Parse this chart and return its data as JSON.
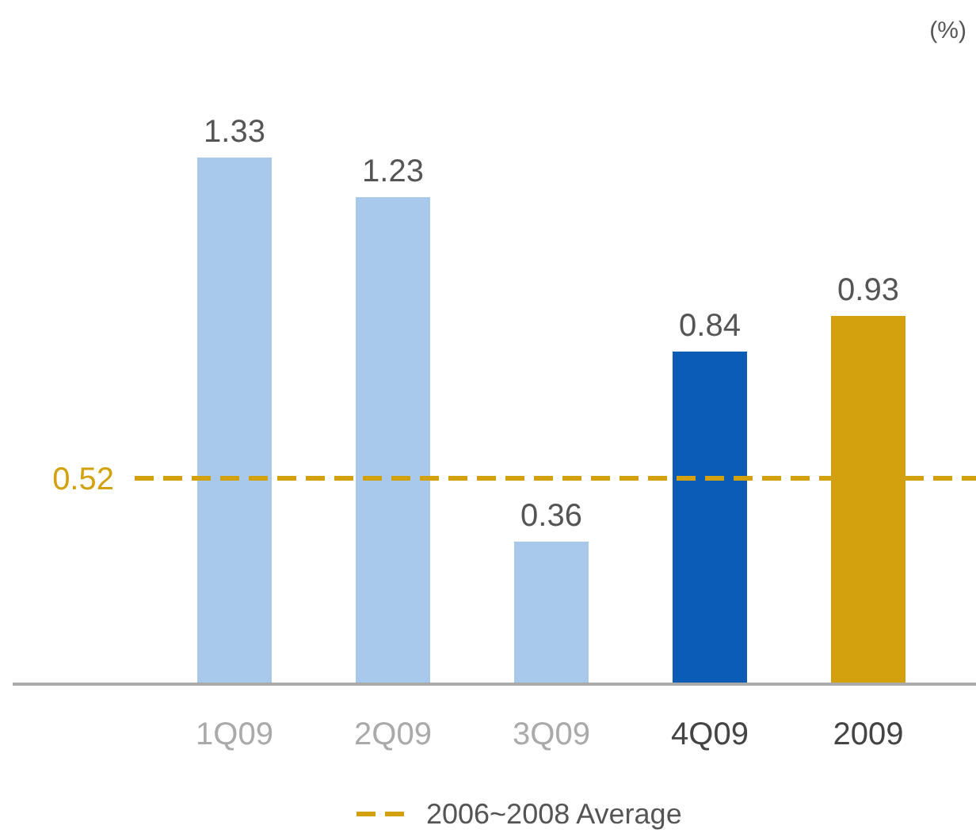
{
  "chart_data": {
    "type": "bar",
    "ylabel": "(%)",
    "categories": [
      "1Q09",
      "2Q09",
      "3Q09",
      "4Q09",
      "2009"
    ],
    "values": [
      1.33,
      1.23,
      0.36,
      0.84,
      0.93
    ],
    "colors": [
      "#a9c9ec",
      "#a9c9ec",
      "#a9c9ec",
      "#0b5cb5",
      "#d4a10e"
    ],
    "data_labels": true,
    "ref_lines": [
      {
        "axis": "y",
        "value": 0.52,
        "label": "0.52",
        "color": "#d4a10e",
        "line_style": "dashed"
      }
    ],
    "annotations": [
      "2006~2008 Average"
    ],
    "legend": "bottom"
  }
}
